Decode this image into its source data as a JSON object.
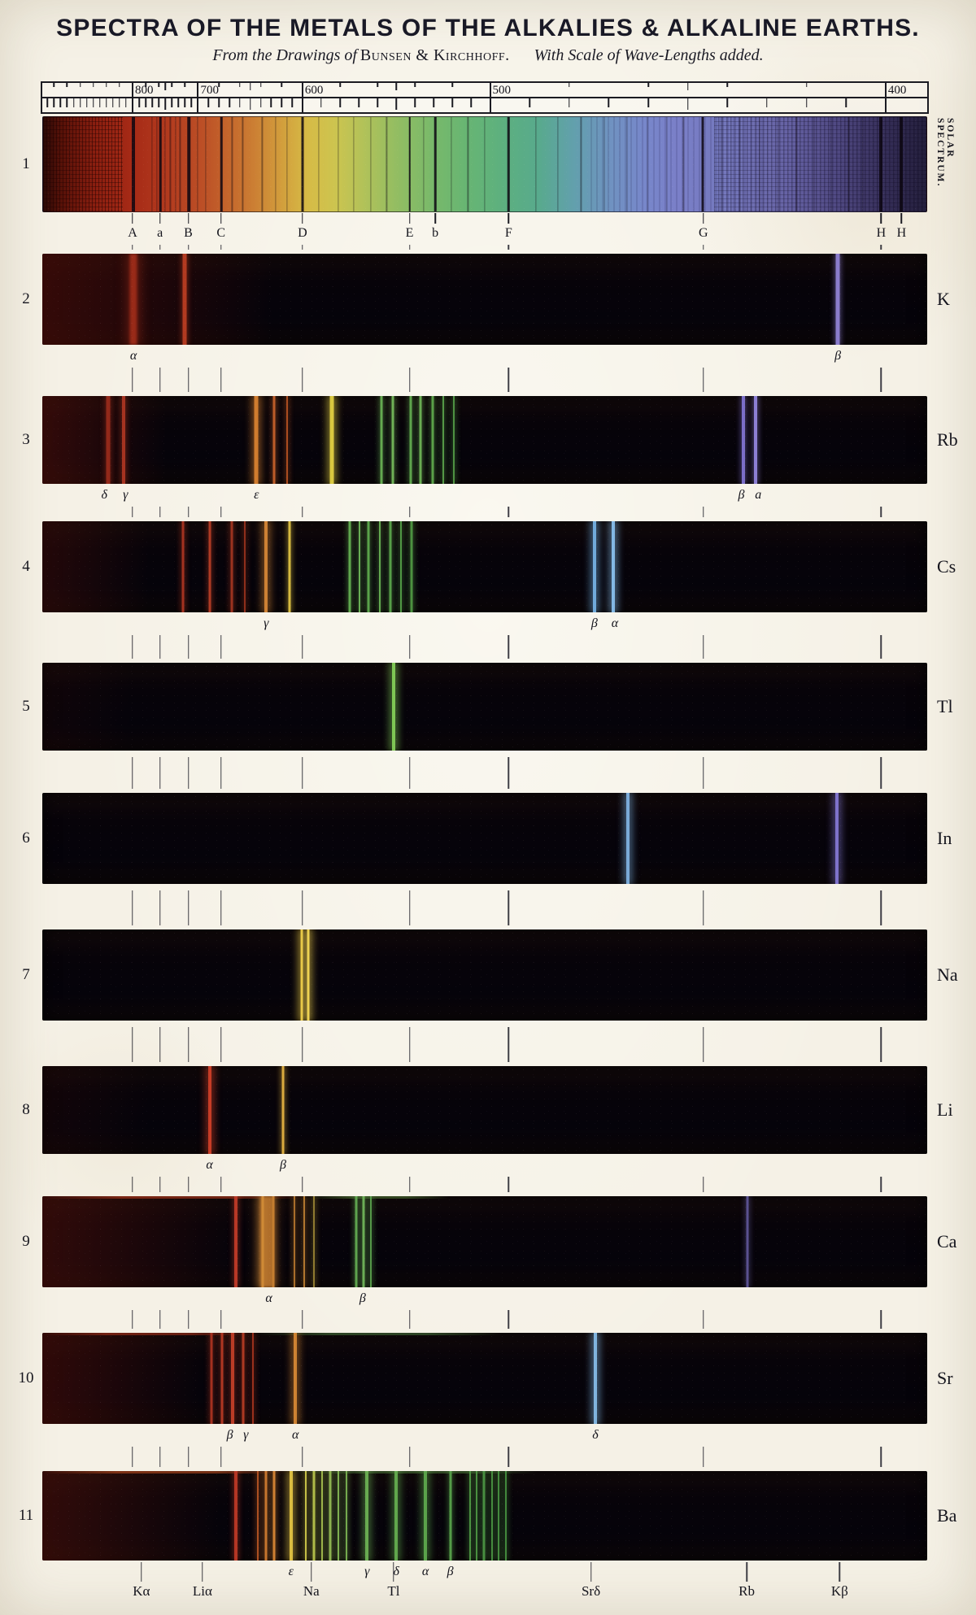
{
  "chart_data": {
    "type": "spectra",
    "title": "SPECTRA OF THE METALS OF THE ALKALIES & ALKALINE EARTHS.",
    "subtitle": {
      "part1": "From the Drawings of",
      "authors": "Bunsen & Kirchhoff.",
      "part2": "With Scale of Wave-Lengths added."
    },
    "wavelength_scale": {
      "tick_labels": [
        "800",
        "700",
        "600",
        "500",
        "400"
      ],
      "tick_pcts": [
        10.2,
        17.6,
        29.4,
        50.6,
        95.3
      ]
    },
    "guide_line_pcts": [
      10.2,
      13.3,
      16.5,
      20.2,
      29.4,
      41.5,
      52.7,
      74.7,
      94.8
    ],
    "solar_spectrum": {
      "row_number": "1",
      "side_label": "SOLAR SPECTRUM.",
      "gradient_stops": [
        [
          0,
          "#2a0a06"
        ],
        [
          2,
          "#571108"
        ],
        [
          6,
          "#8c1f10"
        ],
        [
          10,
          "#a62a16"
        ],
        [
          14,
          "#b23a1e"
        ],
        [
          18,
          "#bc4f26"
        ],
        [
          21,
          "#c4662c"
        ],
        [
          24,
          "#cc8034"
        ],
        [
          27,
          "#d29e3c"
        ],
        [
          30,
          "#d6bb46"
        ],
        [
          33,
          "#cdc44f"
        ],
        [
          36,
          "#b4c258"
        ],
        [
          40,
          "#93bd62"
        ],
        [
          44,
          "#79b96a"
        ],
        [
          48,
          "#67b573"
        ],
        [
          52,
          "#5db07f"
        ],
        [
          56,
          "#58aa8c"
        ],
        [
          60,
          "#62a0ac"
        ],
        [
          64,
          "#6f93c0"
        ],
        [
          68,
          "#7787ca"
        ],
        [
          72,
          "#7a7fc8"
        ],
        [
          76,
          "#757abf"
        ],
        [
          80,
          "#6f6fb2"
        ],
        [
          84,
          "#6663a4"
        ],
        [
          87,
          "#5b5694"
        ],
        [
          90,
          "#4f4881"
        ],
        [
          93,
          "#413a6b"
        ],
        [
          96,
          "#332c54"
        ],
        [
          100,
          "#241f3c"
        ]
      ],
      "fraunhofer": [
        {
          "letter": "A",
          "pct": 10.2,
          "w": 4
        },
        {
          "letter": "a",
          "pct": 13.3,
          "w": 2.5
        },
        {
          "letter": "B",
          "pct": 16.5,
          "w": 3.5
        },
        {
          "letter": "C",
          "pct": 20.2,
          "w": 2.5
        },
        {
          "letter": "D",
          "pct": 29.4,
          "w": 3
        },
        {
          "letter": "E",
          "pct": 41.5,
          "w": 2.5
        },
        {
          "letter": "b",
          "pct": 44.4,
          "w": 2.5
        },
        {
          "letter": "F",
          "pct": 52.7,
          "w": 2.5
        },
        {
          "letter": "G",
          "pct": 74.7,
          "w": 3
        },
        {
          "letter": "H",
          "pct": 94.8,
          "w": 4
        },
        {
          "letter": "H",
          "pct": 97.1,
          "w": 4
        }
      ],
      "minor_line_pcts": [
        12.3,
        12.9,
        13.8,
        14.4,
        15.0,
        15.5,
        17.5,
        18.4,
        21.4,
        22.6,
        24.8,
        26.3,
        27.6,
        31.2,
        33.4,
        35.2,
        37.1,
        38.9,
        43.1,
        46.2,
        48.1,
        50.0,
        55.8,
        58.3,
        60.9,
        63.5,
        66.1,
        68.4,
        70.6,
        72.5,
        76.8,
        78.9,
        81.1,
        83.2,
        85.3,
        87.3,
        89.2,
        91.2,
        92.8
      ]
    },
    "emission_rows": [
      {
        "row_number": "2",
        "element": "K",
        "continuum": {
          "rgb": "92,16,8",
          "alpha": 0.55,
          "end": 26
        },
        "lines": [
          [
            10.3,
            9,
            "#992a18",
            "soft"
          ],
          [
            16.1,
            5,
            "#b23a20"
          ],
          [
            89.9,
            5,
            "#8a7ccc"
          ]
        ],
        "labels_below": [
          {
            "text": "α",
            "pct": 10.3
          },
          {
            "text": "β",
            "pct": 89.9
          }
        ]
      },
      {
        "row_number": "3",
        "element": "Rb",
        "continuum": {
          "rgb": "96,18,10",
          "alpha": 0.5,
          "end": 14
        },
        "lines": [
          [
            7.4,
            5,
            "#93291a"
          ],
          [
            9.2,
            4,
            "#a53320"
          ],
          [
            24.2,
            5,
            "#d07c2e",
            "bright"
          ],
          [
            26.2,
            3,
            "#bc5c28"
          ],
          [
            27.7,
            2,
            "#aa4c20"
          ],
          [
            32.7,
            5,
            "#d9c83f",
            "bright"
          ],
          [
            38.3,
            3,
            "#64aa50"
          ],
          [
            39.6,
            3,
            "#6fb056"
          ],
          [
            41.6,
            3,
            "#5ea44c"
          ],
          [
            42.7,
            3,
            "#69ac52"
          ],
          [
            44.1,
            3,
            "#5aa048"
          ],
          [
            45.3,
            2,
            "#549846"
          ],
          [
            46.5,
            2,
            "#4e9242"
          ],
          [
            79.2,
            4,
            "#7b6ec8"
          ],
          [
            80.6,
            4,
            "#8c7fd4"
          ]
        ],
        "labels_below": [
          {
            "text": "δ",
            "pct": 7.0
          },
          {
            "text": "γ",
            "pct": 9.4
          },
          {
            "text": "ε",
            "pct": 24.2
          },
          {
            "text": "β",
            "pct": 79.0
          },
          {
            "text": "a",
            "pct": 80.9
          }
        ]
      },
      {
        "row_number": "4",
        "element": "Cs",
        "continuum": {
          "rgb": "80,16,10",
          "alpha": 0.4,
          "end": 12
        },
        "lines": [
          [
            15.9,
            3,
            "#a23220"
          ],
          [
            18.9,
            3,
            "#ae3a24"
          ],
          [
            21.4,
            3,
            "#9a321f"
          ],
          [
            22.9,
            2,
            "#8e2e1b"
          ],
          [
            25.3,
            4,
            "#cd8134",
            "bright"
          ],
          [
            27.9,
            3,
            "#d6ba40"
          ],
          [
            34.7,
            3,
            "#60a84e"
          ],
          [
            35.8,
            2,
            "#68ae54"
          ],
          [
            36.9,
            3,
            "#5aa24a"
          ],
          [
            38.1,
            2,
            "#64aa50"
          ],
          [
            39.3,
            3,
            "#569e48"
          ],
          [
            40.5,
            2,
            "#509844"
          ],
          [
            41.7,
            3,
            "#4c9240"
          ],
          [
            62.4,
            4,
            "#70aada",
            "bright"
          ],
          [
            64.5,
            4,
            "#83b8e4",
            "bright"
          ]
        ],
        "labels_below": [
          {
            "text": "γ",
            "pct": 25.3
          },
          {
            "text": "β",
            "pct": 62.4
          },
          {
            "text": "α",
            "pct": 64.7
          }
        ]
      },
      {
        "row_number": "5",
        "element": "Tl",
        "continuum": {
          "rgb": "70,14,8",
          "alpha": 0.15,
          "end": 10
        },
        "lines": [
          [
            39.7,
            4,
            "#7ec654",
            "bright"
          ]
        ],
        "labels_below": []
      },
      {
        "row_number": "6",
        "element": "In",
        "lines": [
          [
            66.2,
            4,
            "#7aaad8",
            "bright"
          ],
          [
            89.8,
            4,
            "#7e72ca",
            "bright"
          ]
        ],
        "labels_below": []
      },
      {
        "row_number": "7",
        "element": "Na",
        "lines": [
          [
            29.3,
            3,
            "#e8c846",
            "bright"
          ],
          [
            30.1,
            3,
            "#eed252",
            "bright"
          ]
        ],
        "labels_below": []
      },
      {
        "row_number": "8",
        "element": "Li",
        "continuum": {
          "rgb": "70,14,8",
          "alpha": 0.18,
          "end": 12
        },
        "lines": [
          [
            18.9,
            4,
            "#c63c26",
            "bright"
          ],
          [
            27.2,
            3,
            "#d9aa3e"
          ]
        ],
        "labels_below": [
          {
            "text": "α",
            "pct": 18.9
          },
          {
            "text": "β",
            "pct": 27.2
          }
        ]
      },
      {
        "row_number": "9",
        "element": "Ca",
        "continuum": {
          "rgb": "90,18,10",
          "alpha": 0.5,
          "end": 22
        },
        "top_edge": [
          [
            0,
            30,
            "rgba(195,62,30,0.55)"
          ],
          [
            30,
            46,
            "rgba(110,165,70,0.4)"
          ]
        ],
        "lines": [
          [
            21.9,
            4,
            "#b83826"
          ],
          [
            25.4,
            16,
            "#a9692a",
            "soft"
          ],
          [
            24.9,
            3,
            "#cf8a36",
            "bright"
          ],
          [
            26.1,
            3,
            "#c47e30"
          ],
          [
            28.5,
            2,
            "#a96e2a"
          ],
          [
            29.6,
            2,
            "#b0762e"
          ],
          [
            30.7,
            2,
            "#8f7a30"
          ],
          [
            35.5,
            3,
            "#5fa44e"
          ],
          [
            36.3,
            3,
            "#6cae56"
          ],
          [
            37.1,
            2,
            "#559848"
          ],
          [
            79.7,
            3,
            "#5a5190"
          ]
        ],
        "labels_below": [
          {
            "text": "α",
            "pct": 25.6
          },
          {
            "text": "β",
            "pct": 36.2
          }
        ]
      },
      {
        "row_number": "10",
        "element": "Sr",
        "continuum": {
          "rgb": "88,16,9",
          "alpha": 0.5,
          "end": 18
        },
        "top_edge": [
          [
            0,
            24,
            "rgba(190,55,28,0.5)"
          ],
          [
            24,
            52,
            "rgba(95,160,80,0.4)"
          ]
        ],
        "lines": [
          [
            19.1,
            3,
            "#a4301f"
          ],
          [
            20.3,
            3,
            "#ae3622"
          ],
          [
            21.5,
            4,
            "#ba3c26"
          ],
          [
            22.7,
            3,
            "#ac3822"
          ],
          [
            23.8,
            2,
            "#9a301c"
          ],
          [
            28.6,
            4,
            "#ce8232",
            "bright"
          ],
          [
            62.5,
            4,
            "#80b4de",
            "bright"
          ]
        ],
        "labels_below": [
          {
            "text": "β",
            "pct": 21.2
          },
          {
            "text": "γ",
            "pct": 23.0
          },
          {
            "text": "α",
            "pct": 28.6
          },
          {
            "text": "δ",
            "pct": 62.5
          }
        ]
      },
      {
        "row_number": "11",
        "element": "Ba",
        "continuum": {
          "rgb": "92,20,10",
          "alpha": 0.5,
          "end": 20
        },
        "top_edge": [
          [
            0,
            28,
            "rgba(200,80,30,0.55)"
          ],
          [
            28,
            56,
            "rgba(100,165,75,0.4)"
          ]
        ],
        "lines": [
          [
            21.9,
            4,
            "#b43624"
          ],
          [
            24.4,
            2,
            "#ac5022"
          ],
          [
            25.3,
            3,
            "#c6742e"
          ],
          [
            26.2,
            3,
            "#ce8032"
          ],
          [
            28.1,
            4,
            "#dabc40",
            "bright"
          ],
          [
            29.8,
            2,
            "#c5be46"
          ],
          [
            30.7,
            3,
            "#afba48"
          ],
          [
            31.6,
            2,
            "#9db44b"
          ],
          [
            32.5,
            3,
            "#8db250"
          ],
          [
            33.5,
            2,
            "#7eae50"
          ],
          [
            34.4,
            2,
            "#74aa4e"
          ],
          [
            36.7,
            4,
            "#68aa50",
            "bright"
          ],
          [
            40.0,
            4,
            "#60a64c",
            "bright"
          ],
          [
            43.3,
            4,
            "#5aa24a",
            "bright"
          ],
          [
            46.1,
            3,
            "#549c48"
          ],
          [
            48.3,
            2,
            "#4c9242"
          ],
          [
            49.1,
            2,
            "#4a9040"
          ],
          [
            49.9,
            3,
            "#488e40"
          ],
          [
            50.8,
            2,
            "#468c3e"
          ],
          [
            51.6,
            2,
            "#448a3e"
          ],
          [
            52.4,
            2,
            "#42883c"
          ]
        ],
        "labels_below": [
          {
            "text": "ε",
            "pct": 28.1
          },
          {
            "text": "γ",
            "pct": 36.7
          },
          {
            "text": "δ",
            "pct": 40.0
          },
          {
            "text": "α",
            "pct": 43.3
          },
          {
            "text": "β",
            "pct": 46.1
          }
        ]
      }
    ],
    "bottom_labels": [
      {
        "text": "Kα",
        "pct": 11.2
      },
      {
        "text": "Liα",
        "pct": 18.1
      },
      {
        "text": "Na",
        "pct": 30.4
      },
      {
        "text": "Tl",
        "pct": 39.7
      },
      {
        "text": "Srδ",
        "pct": 62.0
      },
      {
        "text": "Rb",
        "pct": 79.6
      },
      {
        "text": "Kβ",
        "pct": 90.1
      }
    ],
    "colors": {
      "paper": "#f5f1e6",
      "ink": "#15151d",
      "band_background": "#070309"
    }
  }
}
